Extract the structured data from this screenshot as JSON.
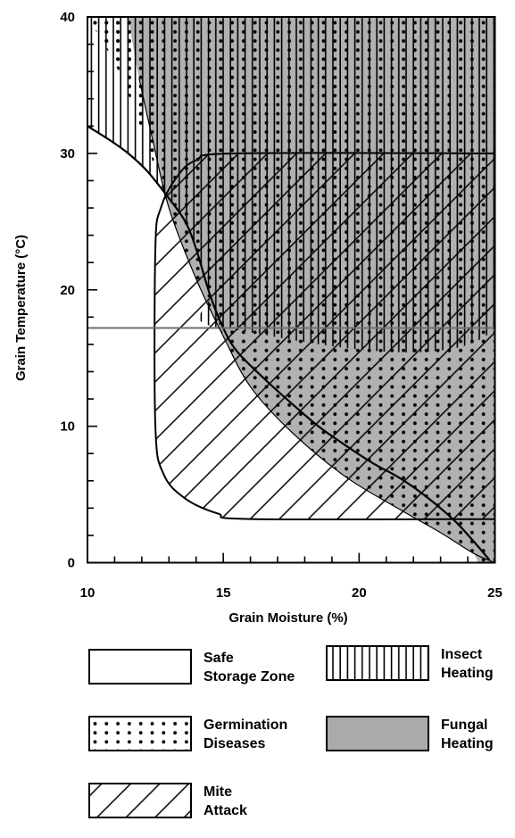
{
  "chart_data": {
    "type": "area",
    "xlabel": "Grain Moisture (%)",
    "ylabel": "Grain Temperature (°C)",
    "xlim": [
      10,
      25
    ],
    "ylim": [
      0,
      40
    ],
    "x_ticks": [
      10,
      15,
      20,
      25
    ],
    "y_ticks": [
      0,
      10,
      20,
      30,
      40
    ],
    "x_tick_labels": [
      "10",
      "15",
      "20",
      "25"
    ],
    "y_tick_labels": [
      "0",
      "10",
      "20",
      "30",
      "40"
    ],
    "x_minor_step": 1,
    "y_minor_step": 2,
    "grid": false,
    "legend_position": "bottom",
    "regions": [
      {
        "name": "Safe Storage Zone",
        "pattern": "blank",
        "boundary": "everything not covered by another zone, below 17.2 °C and left of the fungal/germination curve"
      },
      {
        "name": "Insect Heating",
        "pattern": "vertical-lines",
        "points": [
          [
            10,
            32
          ],
          [
            10.8,
            31
          ],
          [
            11.5,
            30
          ],
          [
            12.2,
            28.7
          ],
          [
            13,
            26.7
          ],
          [
            13.6,
            25
          ],
          [
            14,
            23
          ],
          [
            14.5,
            19.7
          ],
          [
            15,
            17.2
          ],
          [
            25,
            17.2
          ],
          [
            25,
            40
          ],
          [
            10,
            40
          ]
        ]
      },
      {
        "name": "Germination Diseases",
        "pattern": "dots",
        "points": [
          [
            10,
            40
          ],
          [
            25,
            40
          ],
          [
            25,
            0
          ],
          [
            24.2,
            0.7
          ],
          [
            23,
            2.2
          ],
          [
            21.5,
            3.9
          ],
          [
            19.5,
            6.3
          ],
          [
            17.5,
            9.6
          ],
          [
            16,
            12.9
          ],
          [
            15,
            16.6
          ],
          [
            14,
            20.8
          ],
          [
            13,
            26
          ],
          [
            12.3,
            30
          ],
          [
            11.2,
            35.8
          ],
          [
            10,
            40
          ]
        ]
      },
      {
        "name": "Fungal Heating",
        "pattern": "gray",
        "points": [
          [
            11.5,
            40
          ],
          [
            25,
            40
          ],
          [
            25,
            0
          ],
          [
            24.2,
            0.7
          ],
          [
            23,
            2.2
          ],
          [
            21.5,
            3.9
          ],
          [
            19.5,
            6.3
          ],
          [
            17.5,
            9.6
          ],
          [
            16,
            12.9
          ],
          [
            15,
            16.6
          ],
          [
            14,
            20.8
          ],
          [
            13,
            26
          ],
          [
            12.4,
            31
          ],
          [
            11.9,
            35.5
          ],
          [
            11.5,
            40
          ]
        ]
      },
      {
        "name": "Mite Attack",
        "pattern": "diagonal-lines",
        "points": [
          [
            25,
            30
          ],
          [
            15.5,
            30
          ],
          [
            14,
            29.5
          ],
          [
            13.3,
            28.3
          ],
          [
            12.7,
            26
          ],
          [
            12.5,
            23
          ],
          [
            12.5,
            10
          ],
          [
            12.8,
            6.5
          ],
          [
            13.6,
            4.7
          ],
          [
            14.8,
            3.6
          ],
          [
            16,
            3.2
          ],
          [
            25,
            3.2
          ]
        ]
      }
    ],
    "boundaries": [
      {
        "name": "insect-heating-boundary",
        "points": [
          [
            10,
            32
          ],
          [
            10.8,
            31
          ],
          [
            11.5,
            30
          ],
          [
            12.2,
            28.7
          ],
          [
            13,
            26.7
          ],
          [
            13.6,
            25
          ],
          [
            14,
            23
          ],
          [
            14.5,
            19.7
          ],
          [
            15,
            17.2
          ],
          [
            15.5,
            15.5
          ],
          [
            16.5,
            13.5
          ],
          [
            17.5,
            11.7
          ],
          [
            18.5,
            10
          ],
          [
            19.5,
            8.6
          ],
          [
            20.5,
            7.3
          ],
          [
            21.5,
            6.2
          ],
          [
            22.5,
            4.8
          ],
          [
            23.5,
            3.1
          ],
          [
            24.2,
            1.6
          ],
          [
            24.8,
            0.2
          ]
        ]
      },
      {
        "name": "insect-temperature-line",
        "points": [
          [
            10,
            17.2
          ],
          [
            25,
            17.2
          ]
        ]
      }
    ],
    "legend": [
      {
        "pattern": "blank",
        "line1": "Safe",
        "line2": "Storage Zone"
      },
      {
        "pattern": "vertical-lines",
        "line1": "Insect",
        "line2": "Heating"
      },
      {
        "pattern": "dots",
        "line1": "Germination",
        "line2": "Diseases"
      },
      {
        "pattern": "gray",
        "line1": "Fungal",
        "line2": "Heating"
      },
      {
        "pattern": "diagonal-lines",
        "line1": "Mite",
        "line2": "Attack"
      }
    ],
    "colors": {
      "fungal_fill": "#aaaaaa",
      "insect_line_gray": "#6e6e6e",
      "ink": "#000000",
      "background": "#ffffff"
    }
  }
}
